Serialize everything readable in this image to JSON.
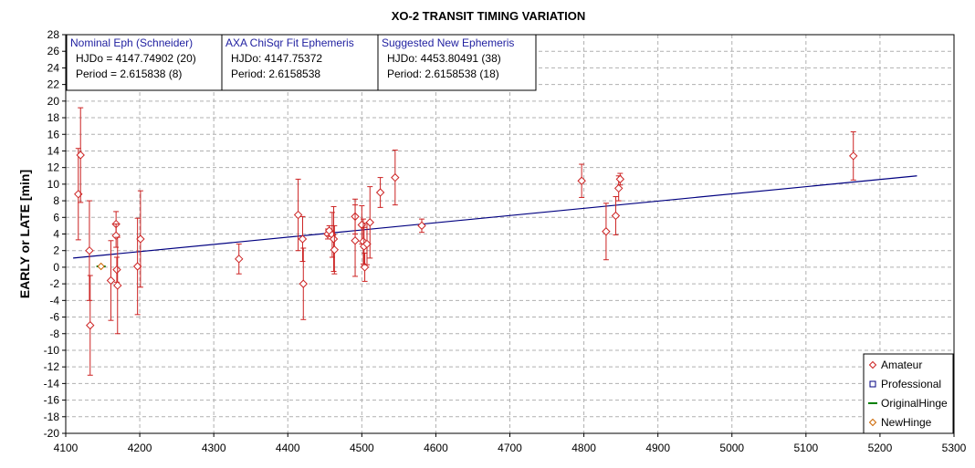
{
  "chart_data": {
    "type": "scatter",
    "title": "XO-2 TRANSIT TIMING VARIATION",
    "xlabel": "",
    "ylabel": "EARLY or LATE [min]",
    "xlim": [
      4100,
      5300
    ],
    "ylim": [
      -20,
      28
    ],
    "x_step": 100,
    "y_step": 2,
    "grid": true,
    "legend_position": "bottom-right",
    "colors": {
      "amateur": "#cc2222",
      "professional": "#000080",
      "original_hinge": "#008000",
      "new_hinge": "#cc6600",
      "fit_line": "#000080"
    },
    "ephemeris_boxes": [
      {
        "heading": "Nominal Eph (Schneider)",
        "line1": "HJDo = 4147.74902 (20)",
        "line2": "Period = 2.615838 (8)"
      },
      {
        "heading": "AXA ChiSqr Fit Ephemeris",
        "line1": "HJDo:  4147.75372",
        "line2": "Period: 2.6158538"
      },
      {
        "heading": "Suggested New Ephemeris",
        "line1": "HJDo:  4453.80491 (38)",
        "line2": "Period: 2.6158538 (18)"
      }
    ],
    "series": [
      {
        "name": "Amateur",
        "marker": "diamond",
        "points": [
          {
            "x": 4117,
            "y": 8.8,
            "err": 5.5
          },
          {
            "x": 4120,
            "y": 13.5,
            "err": 5.7
          },
          {
            "x": 4132,
            "y": 2.0,
            "err": 6.0
          },
          {
            "x": 4133,
            "y": -7.0,
            "err": 6.0
          },
          {
            "x": 4161,
            "y": -1.6,
            "err": 4.8
          },
          {
            "x": 4168,
            "y": 5.2,
            "err": 1.5
          },
          {
            "x": 4168,
            "y": 3.8,
            "err": 1.4
          },
          {
            "x": 4169,
            "y": -0.3,
            "err": 1.5
          },
          {
            "x": 4170,
            "y": -2.2,
            "err": 5.8
          },
          {
            "x": 4197,
            "y": 0.1,
            "err": 5.8
          },
          {
            "x": 4201,
            "y": 3.4,
            "err": 5.8
          },
          {
            "x": 4334,
            "y": 1.0,
            "err": 1.8
          },
          {
            "x": 4414,
            "y": 6.3,
            "err": 4.3
          },
          {
            "x": 4420,
            "y": 3.4,
            "err": 2.7
          },
          {
            "x": 4421,
            "y": -2.0,
            "err": 4.3
          },
          {
            "x": 4454,
            "y": 4.0,
            "err": 0.6
          },
          {
            "x": 4456,
            "y": 4.4,
            "err": 0.6
          },
          {
            "x": 4460,
            "y": 3.9,
            "err": 2.7
          },
          {
            "x": 4462,
            "y": 3.4,
            "err": 3.9
          },
          {
            "x": 4463,
            "y": 2.1,
            "err": 2.9
          },
          {
            "x": 4491,
            "y": 6.1,
            "err": 2.1
          },
          {
            "x": 4491,
            "y": 3.2,
            "err": 4.3
          },
          {
            "x": 4500,
            "y": 5.1,
            "err": 2.3
          },
          {
            "x": 4502,
            "y": 3.1,
            "err": 2.7
          },
          {
            "x": 4503,
            "y": 2.5,
            "err": 2.3
          },
          {
            "x": 4504,
            "y": 0.0,
            "err": 1.7
          },
          {
            "x": 4507,
            "y": 2.8,
            "err": 2.5
          },
          {
            "x": 4511,
            "y": 5.4,
            "err": 4.3
          },
          {
            "x": 4525,
            "y": 9.0,
            "err": 1.8
          },
          {
            "x": 4545,
            "y": 10.8,
            "err": 3.3
          },
          {
            "x": 4581,
            "y": 5.0,
            "err": 0.8
          },
          {
            "x": 4797,
            "y": 10.4,
            "err": 2.0
          },
          {
            "x": 4830,
            "y": 4.3,
            "err": 3.4
          },
          {
            "x": 4843,
            "y": 6.2,
            "err": 2.3
          },
          {
            "x": 4847,
            "y": 9.5,
            "err": 1.5
          },
          {
            "x": 4849,
            "y": 10.6,
            "err": 0.7
          },
          {
            "x": 5164,
            "y": 13.4,
            "err": 2.9
          }
        ]
      },
      {
        "name": "Professional",
        "marker": "square",
        "points": []
      },
      {
        "name": "OriginalHinge",
        "marker": "line",
        "points": [
          {
            "x": 4147.7,
            "y": 0.1,
            "err": 0
          }
        ]
      },
      {
        "name": "NewHinge",
        "marker": "diamond",
        "points": [
          {
            "x": 4147.7,
            "y": 0.1,
            "err": 0
          }
        ]
      }
    ],
    "fit_line": {
      "x": [
        4110,
        5250
      ],
      "y": [
        1.1,
        11.0
      ]
    }
  }
}
